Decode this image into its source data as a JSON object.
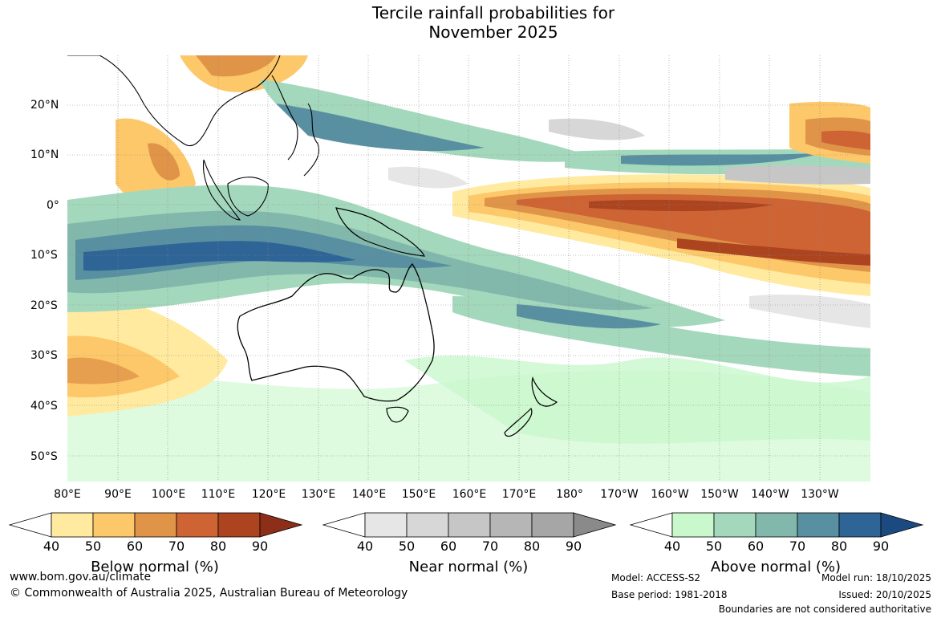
{
  "title_line1": "Tercile rainfall probabilities for",
  "title_line2": "November 2025",
  "lat_labels": [
    "20°N",
    "10°N",
    "0°",
    "10°S",
    "20°S",
    "30°S",
    "40°S",
    "50°S"
  ],
  "lon_labels": [
    "80°E",
    "90°E",
    "100°E",
    "110°E",
    "120°E",
    "130°E",
    "140°E",
    "150°E",
    "160°E",
    "170°E",
    "180°",
    "170°W",
    "160°W",
    "150°W",
    "140°W",
    "130°W"
  ],
  "colorbars": [
    {
      "label": "Below normal (%)",
      "colors": [
        "#ffffff",
        "#ffeaa0",
        "#fdc86a",
        "#e09448",
        "#ce6434",
        "#ac4420",
        "#8c2e18"
      ]
    },
    {
      "label": "Near normal (%)",
      "colors": [
        "#ffffff",
        "#e6e6e6",
        "#d7d7d7",
        "#c6c6c6",
        "#b6b6b6",
        "#a6a6a6",
        "#8a8a8a"
      ]
    },
    {
      "label": "Above normal (%)",
      "colors": [
        "#ffffff",
        "#c8f8cc",
        "#a4d8bc",
        "#82b8ac",
        "#5890a2",
        "#2e6496",
        "#1a4a80"
      ]
    }
  ],
  "tick_values": [
    "40",
    "50",
    "60",
    "70",
    "80",
    "90"
  ],
  "footer": {
    "website": "www.bom.gov.au/climate",
    "copyright": "© Commonwealth of Australia 2025, Australian Bureau of Meteorology",
    "model": "Model: ACCESS-S2",
    "base_period": "Base period: 1981-2018",
    "model_run": "Model run: 18/10/2025",
    "issued": "Issued: 20/10/2025",
    "disclaimer": "Boundaries are not considered authoritative"
  }
}
